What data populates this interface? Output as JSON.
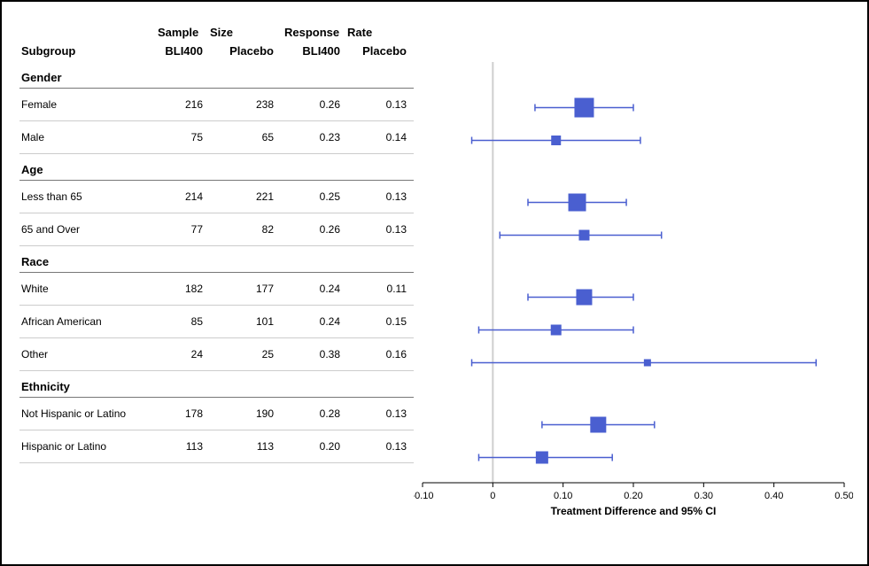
{
  "headers": {
    "super1": "Sample",
    "super1b": "Size",
    "super2": "Response",
    "super2b": "Rate",
    "subgroup": "Subgroup",
    "n_trt": "BLI400",
    "n_pbo": "Placebo",
    "r_trt": "BLI400",
    "r_pbo": "Placebo"
  },
  "xaxis": {
    "label": "Treatment Difference and 95% CI",
    "min": -0.1,
    "max": 0.5,
    "ticks": [
      -0.1,
      0,
      0.1,
      0.2,
      0.3,
      0.4,
      0.5
    ],
    "tick_labels": [
      "-0.10",
      "0",
      "0.10",
      "0.20",
      "0.30",
      "0.40",
      "0.50"
    ],
    "refline": 0
  },
  "style": {
    "marker_color": "#4a5fd0",
    "line_color": "#4a5fd0",
    "refline_color": "#cfcfcf",
    "axis_color": "#000000",
    "border_color": "#777777",
    "row_border_color": "#cccccc",
    "background": "#ffffff",
    "font_family": "Arial",
    "header_fontsize": 13,
    "row_fontsize": 12,
    "line_width": 1.5
  },
  "groups": [
    {
      "name": "Gender",
      "rows": [
        {
          "label": "Female",
          "n_trt": 216,
          "n_pbo": 238,
          "r_trt": "0.26",
          "r_pbo": "0.13",
          "est": 0.13,
          "lo": 0.06,
          "hi": 0.2,
          "size": 22
        },
        {
          "label": "Male",
          "n_trt": 75,
          "n_pbo": 65,
          "r_trt": "0.23",
          "r_pbo": "0.14",
          "est": 0.09,
          "lo": -0.03,
          "hi": 0.21,
          "size": 11
        }
      ]
    },
    {
      "name": "Age",
      "rows": [
        {
          "label": "Less than 65",
          "n_trt": 214,
          "n_pbo": 221,
          "r_trt": "0.25",
          "r_pbo": "0.13",
          "est": 0.12,
          "lo": 0.05,
          "hi": 0.19,
          "size": 20
        },
        {
          "label": "65 and Over",
          "n_trt": 77,
          "n_pbo": 82,
          "r_trt": "0.26",
          "r_pbo": "0.13",
          "est": 0.13,
          "lo": 0.01,
          "hi": 0.24,
          "size": 12
        }
      ]
    },
    {
      "name": "Race",
      "rows": [
        {
          "label": "White",
          "n_trt": 182,
          "n_pbo": 177,
          "r_trt": "0.24",
          "r_pbo": "0.11",
          "est": 0.13,
          "lo": 0.05,
          "hi": 0.2,
          "size": 18
        },
        {
          "label": "African American",
          "n_trt": 85,
          "n_pbo": 101,
          "r_trt": "0.24",
          "r_pbo": "0.15",
          "est": 0.09,
          "lo": -0.02,
          "hi": 0.2,
          "size": 12
        },
        {
          "label": "Other",
          "n_trt": 24,
          "n_pbo": 25,
          "r_trt": "0.38",
          "r_pbo": "0.16",
          "est": 0.22,
          "lo": -0.03,
          "hi": 0.46,
          "size": 8
        }
      ]
    },
    {
      "name": "Ethnicity",
      "rows": [
        {
          "label": "Not Hispanic or Latino",
          "n_trt": 178,
          "n_pbo": 190,
          "r_trt": "0.28",
          "r_pbo": "0.13",
          "est": 0.15,
          "lo": 0.07,
          "hi": 0.23,
          "size": 18
        },
        {
          "label": "Hispanic or Latino",
          "n_trt": 113,
          "n_pbo": 113,
          "r_trt": "0.20",
          "r_pbo": "0.13",
          "est": 0.07,
          "lo": -0.02,
          "hi": 0.17,
          "size": 14
        }
      ]
    }
  ]
}
